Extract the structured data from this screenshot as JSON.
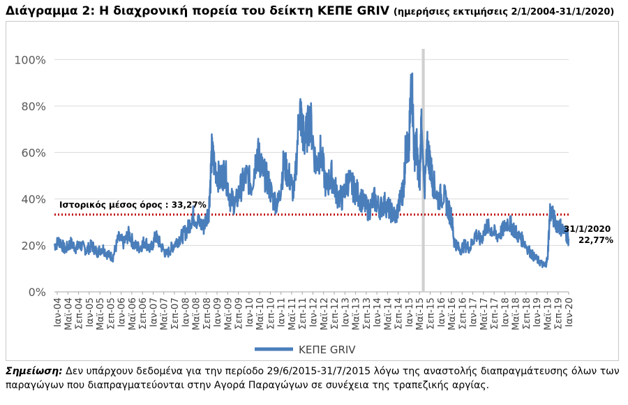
{
  "title": "Διάγραμμα 2: Η διαχρονική πορεία του δείκτη ΚΕΠΕ GRIV",
  "subtitle": "(ημερήσιες εκτιμήσεις 2/1/2004-31/1/2020)",
  "chart_data": {
    "type": "line",
    "title": "Διάγραμμα 2: Η διαχρονική πορεία του δείκτη ΚΕΠΕ GRIV (ημερήσιες εκτιμήσεις 2/1/2004-31/1/2020)",
    "xlabel": "",
    "ylabel": "",
    "ylim": [
      0,
      110
    ],
    "yticks": [
      0,
      20,
      40,
      60,
      80,
      100
    ],
    "ytick_labels": [
      "0%",
      "20%",
      "40%",
      "60%",
      "80%",
      "100%"
    ],
    "xlim": [
      2004.0,
      2020.083
    ],
    "xtick_labels": [
      "Ιαν-04",
      "Μαϊ-04",
      "Σεπ-04",
      "Ιαν-05",
      "Μαϊ-05",
      "Σεπ-05",
      "Ιαν-06",
      "Μαϊ-06",
      "Σεπ-06",
      "Ιαν-07",
      "Μαϊ-07",
      "Σεπ-07",
      "Ιαν-08",
      "Μαϊ-08",
      "Σεπ-08",
      "Ιαν-09",
      "Μαϊ-09",
      "Σεπ-09",
      "Ιαν-10",
      "Μαϊ-10",
      "Σεπ-10",
      "Ιαν-11",
      "Μαϊ-11",
      "Σεπ-11",
      "Ιαν-12",
      "Μαϊ-12",
      "Σεπ-12",
      "Ιαν-13",
      "Μαϊ-13",
      "Σεπ-13",
      "Ιαν-14",
      "Μαϊ-14",
      "Σεπ-14",
      "Ιαν-15",
      "Μαϊ-15",
      "Σεπ-15",
      "Ιαν-16",
      "Μαϊ-16",
      "Σεπ-16",
      "Ιαν-17",
      "Μαϊ-17",
      "Σεπ-17",
      "Ιαν-18",
      "Μαϊ-18",
      "Σεπ-18",
      "Ιαν-19",
      "Μαϊ-19",
      "Σεπ-19",
      "Ιαν-20"
    ],
    "grid": true,
    "legend": "bottom-center",
    "series": [
      {
        "name": "ΚΕΠΕ GRIV",
        "color": "#4a7ebb",
        "x": [
          2004.0,
          2004.17,
          2004.33,
          2004.5,
          2004.67,
          2004.83,
          2005.0,
          2005.17,
          2005.33,
          2005.5,
          2005.67,
          2005.83,
          2006.0,
          2006.17,
          2006.33,
          2006.5,
          2006.67,
          2006.83,
          2007.0,
          2007.17,
          2007.33,
          2007.5,
          2007.67,
          2007.83,
          2008.0,
          2008.17,
          2008.33,
          2008.5,
          2008.67,
          2008.83,
          2008.92,
          2009.0,
          2009.17,
          2009.33,
          2009.5,
          2009.67,
          2009.83,
          2010.0,
          2010.17,
          2010.33,
          2010.42,
          2010.5,
          2010.67,
          2010.83,
          2011.0,
          2011.17,
          2011.33,
          2011.5,
          2011.67,
          2011.75,
          2011.83,
          2012.0,
          2012.17,
          2012.33,
          2012.5,
          2012.67,
          2012.83,
          2013.0,
          2013.17,
          2013.33,
          2013.5,
          2013.67,
          2013.83,
          2014.0,
          2014.17,
          2014.33,
          2014.5,
          2014.67,
          2014.83,
          2014.92,
          2015.0,
          2015.08,
          2015.17,
          2015.25,
          2015.33,
          2015.42,
          2015.48,
          2015.58,
          2015.67,
          2015.75,
          2015.83,
          2016.0,
          2016.17,
          2016.33,
          2016.42,
          2016.5,
          2016.67,
          2016.83,
          2017.0,
          2017.17,
          2017.33,
          2017.5,
          2017.67,
          2017.83,
          2018.0,
          2018.17,
          2018.33,
          2018.5,
          2018.67,
          2018.83,
          2019.0,
          2019.17,
          2019.33,
          2019.42,
          2019.5,
          2019.67,
          2019.83,
          2020.0,
          2020.083
        ],
        "values": [
          20,
          22,
          18,
          21,
          19,
          20,
          18,
          20,
          17,
          19,
          16,
          15,
          23,
          21,
          25,
          20,
          19,
          22,
          18,
          24,
          20,
          16,
          19,
          22,
          24,
          27,
          33,
          30,
          28,
          35,
          60,
          55,
          48,
          52,
          40,
          38,
          45,
          50,
          46,
          60,
          57,
          52,
          48,
          40,
          38,
          55,
          50,
          42,
          80,
          70,
          65,
          75,
          55,
          60,
          45,
          50,
          42,
          40,
          48,
          45,
          42,
          38,
          35,
          40,
          36,
          38,
          35,
          32,
          40,
          45,
          65,
          58,
          95,
          60,
          62,
          45,
          78,
          45,
          62,
          55,
          48,
          40,
          42,
          35,
          32,
          22,
          18,
          20,
          19,
          25,
          22,
          28,
          27,
          24,
          26,
          30,
          28,
          24,
          22,
          18,
          15,
          13,
          11,
          14,
          35,
          30,
          28,
          25,
          22.77
        ]
      }
    ],
    "reference_line": {
      "value": 33.27,
      "label": "Ιστορικός μέσος όρος : 33,27%",
      "color": "#c00000"
    },
    "shaded_period": {
      "from": 2015.49,
      "to": 2015.58
    },
    "end_annotation": {
      "date": "31/1/2020",
      "value": "22,77%"
    }
  },
  "note": {
    "lead": "Σημείωση:",
    "text": " Δεν υπάρχουν δεδομένα για την περίοδο 29/6/2015-31/7/2015 λόγω της αναστολής διαπραγμάτευσης όλων των παραγώγων που διαπραγματεύονται στην Αγορά Παραγώγων σε συνέχεια της τραπεζικής αργίας."
  }
}
